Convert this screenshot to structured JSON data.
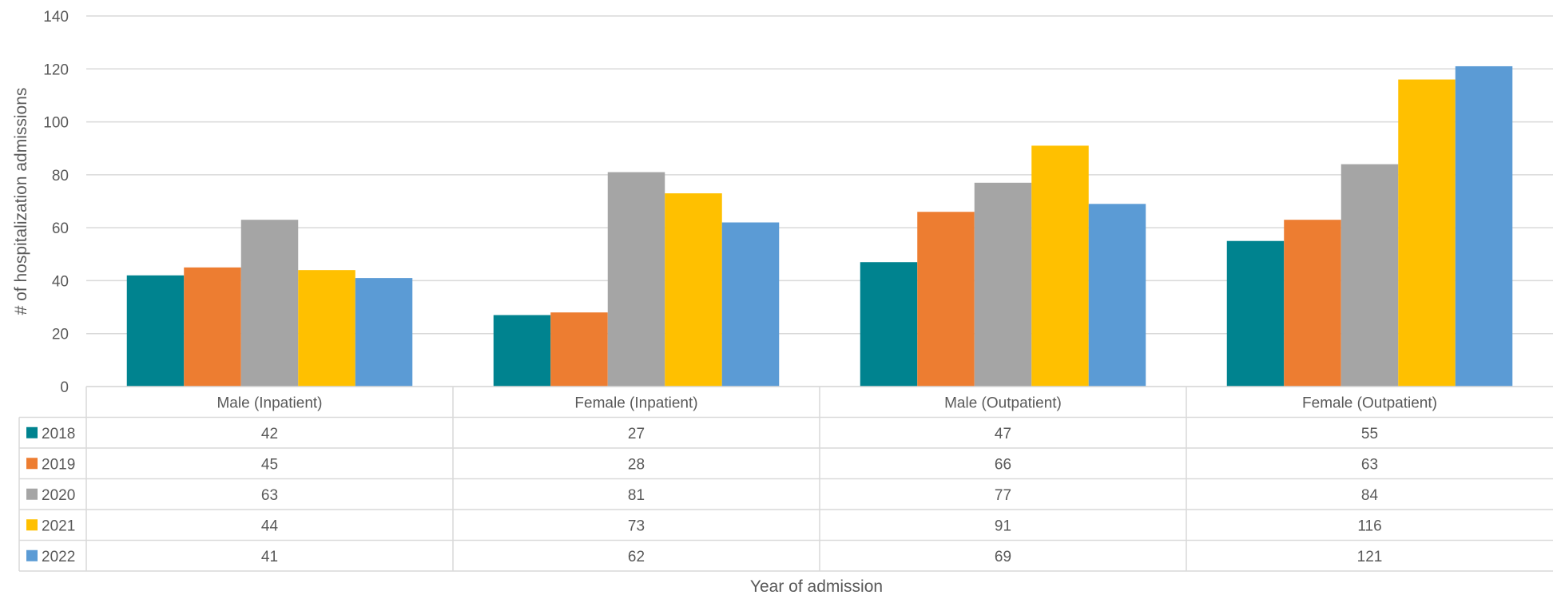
{
  "chart_data": {
    "type": "bar",
    "categories": [
      "Male (Inpatient)",
      "Female (Inpatient)",
      "Male (Outpatient)",
      "Female (Outpatient)"
    ],
    "series": [
      {
        "name": "2018",
        "color": "#00838F",
        "values": [
          42,
          27,
          47,
          55
        ]
      },
      {
        "name": "2019",
        "color": "#ED7D31",
        "values": [
          45,
          28,
          66,
          63
        ]
      },
      {
        "name": "2020",
        "color": "#A5A5A5",
        "values": [
          63,
          81,
          77,
          84
        ]
      },
      {
        "name": "2021",
        "color": "#FFC000",
        "values": [
          44,
          73,
          91,
          116
        ]
      },
      {
        "name": "2022",
        "color": "#5B9BD5",
        "values": [
          41,
          62,
          69,
          121
        ]
      }
    ],
    "title": "",
    "xlabel": "Year of admission",
    "ylabel": "# of hospitalization admissions",
    "ylim": [
      0,
      140
    ],
    "yticks": [
      0,
      20,
      40,
      60,
      80,
      100,
      120,
      140
    ],
    "grid": true,
    "legend": "data table"
  }
}
